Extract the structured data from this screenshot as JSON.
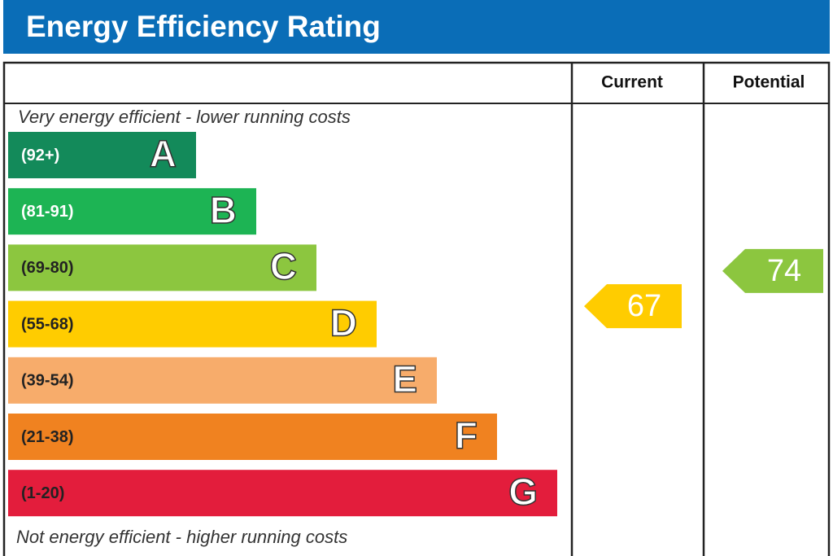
{
  "header": {
    "title": "Energy Efficiency Rating"
  },
  "columns": {
    "current": "Current",
    "potential": "Potential"
  },
  "notes": {
    "top": "Very energy efficient - lower running costs",
    "bottom": "Not energy efficient - higher running costs"
  },
  "bands": [
    {
      "range": "(92+)",
      "letter": "A",
      "color": "#138a5a"
    },
    {
      "range": "(81-91)",
      "letter": "B",
      "color": "#1db454"
    },
    {
      "range": "(69-80)",
      "letter": "C",
      "color": "#8cc63f"
    },
    {
      "range": "(55-68)",
      "letter": "D",
      "color": "#ffcc00"
    },
    {
      "range": "(39-54)",
      "letter": "E",
      "color": "#f7ac6b"
    },
    {
      "range": "(21-38)",
      "letter": "F",
      "color": "#f08220"
    },
    {
      "range": "(1-20)",
      "letter": "G",
      "color": "#e31d3c"
    }
  ],
  "current": {
    "value": "67",
    "color": "#ffcc00"
  },
  "potential": {
    "value": "74",
    "color": "#8cc63f"
  }
}
